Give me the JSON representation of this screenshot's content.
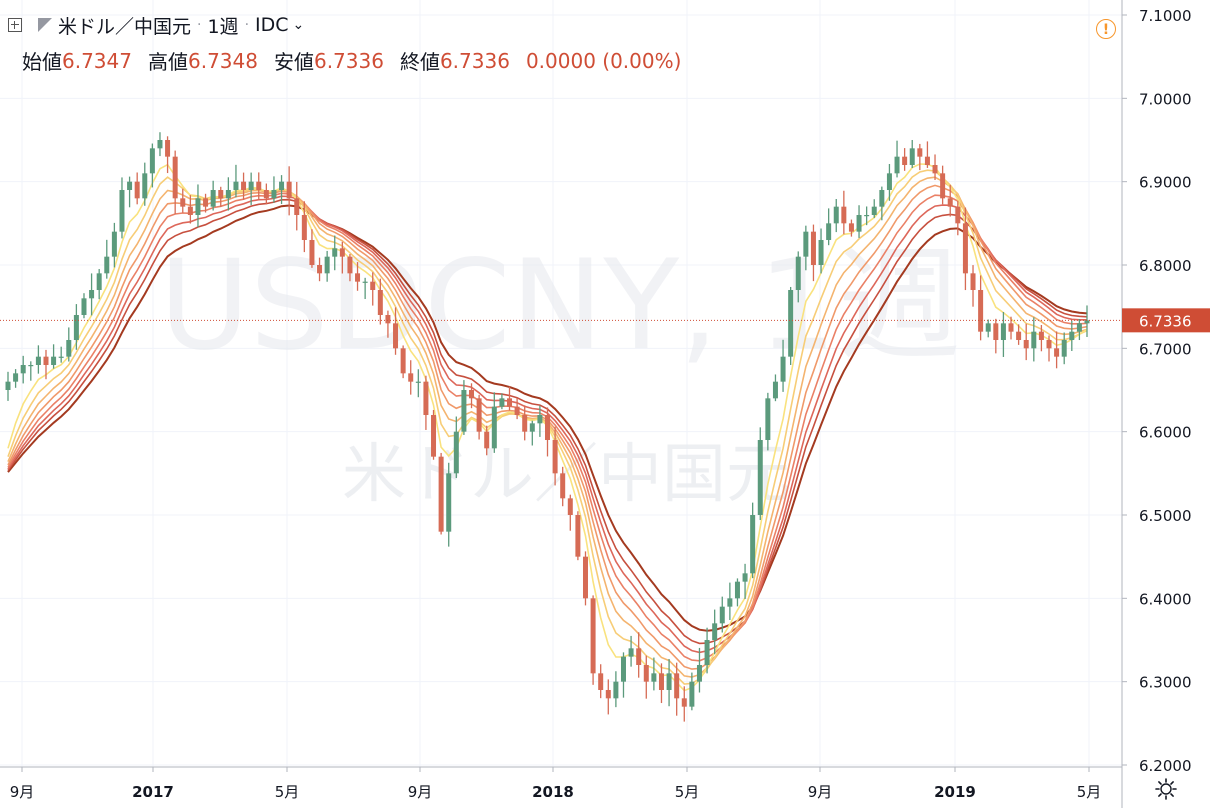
{
  "header": {
    "symbol_name": "米ドル／中国元",
    "interval": "1週",
    "source": "IDC",
    "ohlc": [
      {
        "label": "始値",
        "value": "6.7347"
      },
      {
        "label": "高値",
        "value": "6.7348"
      },
      {
        "label": "安値",
        "value": "6.7336"
      },
      {
        "label": "終値",
        "value": "6.7336"
      }
    ],
    "change": "0.0000 (0.00%)"
  },
  "watermark": {
    "symbol": "USDCNY, 1週",
    "name": "米ドル／中国元"
  },
  "icons": {
    "add": "plus-box-icon",
    "flag": "flag-icon",
    "alert": "exclamation-circle-icon",
    "settings": "gear-icon",
    "dropdown": "chevron-down-icon"
  },
  "colors": {
    "up": "#5b9a7c",
    "down": "#d66b55",
    "price_line": "#cf4d35",
    "grid": "#f0f3fa"
  },
  "chart_data": {
    "type": "candlestick",
    "title": "USDCNY, 1週",
    "x_tick_labels": [
      "9月",
      "2017",
      "5月",
      "9月",
      "2018",
      "5月",
      "9月",
      "2019",
      "5月"
    ],
    "y_tick_labels": [
      "7.1000",
      "7.0000",
      "6.9000",
      "6.8000",
      "6.7000",
      "6.6000",
      "6.5000",
      "6.4000",
      "6.3000",
      "6.2000"
    ],
    "ylim": [
      6.2,
      7.1
    ],
    "last_price": "6.7336",
    "weekly_close_approx": [
      6.66,
      6.67,
      6.68,
      6.68,
      6.69,
      6.68,
      6.69,
      6.69,
      6.71,
      6.74,
      6.76,
      6.77,
      6.79,
      6.81,
      6.84,
      6.89,
      6.9,
      6.88,
      6.91,
      6.94,
      6.95,
      6.93,
      6.88,
      6.87,
      6.86,
      6.88,
      6.87,
      6.89,
      6.88,
      6.89,
      6.9,
      6.89,
      6.9,
      6.89,
      6.88,
      6.89,
      6.9,
      6.88,
      6.86,
      6.83,
      6.8,
      6.79,
      6.81,
      6.82,
      6.81,
      6.79,
      6.78,
      6.78,
      6.77,
      6.74,
      6.73,
      6.7,
      6.67,
      6.66,
      6.66,
      6.62,
      6.57,
      6.48,
      6.55,
      6.6,
      6.65,
      6.64,
      6.6,
      6.58,
      6.63,
      6.64,
      6.63,
      6.62,
      6.6,
      6.61,
      6.62,
      6.59,
      6.55,
      6.52,
      6.5,
      6.45,
      6.4,
      6.31,
      6.29,
      6.28,
      6.3,
      6.33,
      6.34,
      6.32,
      6.3,
      6.31,
      6.29,
      6.31,
      6.28,
      6.27,
      6.3,
      6.32,
      6.35,
      6.37,
      6.39,
      6.4,
      6.42,
      6.43,
      6.5,
      6.59,
      6.64,
      6.66,
      6.69,
      6.77,
      6.81,
      6.84,
      6.8,
      6.83,
      6.85,
      6.87,
      6.85,
      6.84,
      6.86,
      6.86,
      6.87,
      6.89,
      6.91,
      6.93,
      6.92,
      6.94,
      6.93,
      6.92,
      6.91,
      6.88,
      6.87,
      6.85,
      6.79,
      6.77,
      6.72,
      6.73,
      6.71,
      6.73,
      6.72,
      6.71,
      6.7,
      6.72,
      6.71,
      6.7,
      6.69,
      6.71,
      6.72,
      6.73,
      6.7336
    ],
    "moving_average_ribbon": {
      "count": 8,
      "colors": [
        "#f9e27e",
        "#f7cd77",
        "#f4b46f",
        "#f0996a",
        "#ea8066",
        "#dd675a",
        "#c7503f",
        "#a43a20"
      ],
      "periods": [
        5,
        7,
        9,
        11,
        13,
        15,
        17,
        20
      ]
    }
  }
}
